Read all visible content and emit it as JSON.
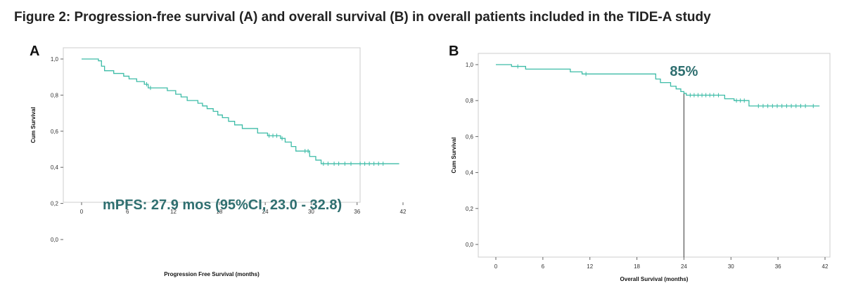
{
  "figure_title": "Figure 2: Progression-free survival (A) and overall survival (B) in overall patients included in the TIDE-A study",
  "colors": {
    "curve": "#3dbca7",
    "annotation": "#2f6f70",
    "axis": "#666666",
    "frame": "#cccccc",
    "refline": "#555555"
  },
  "chart_data": [
    {
      "type": "line",
      "panel_label": "A",
      "xlabel": "Progression Free Survival (months)",
      "ylabel": "Cum Survival",
      "xlim": [
        0,
        42
      ],
      "ylim": [
        0,
        1
      ],
      "xticks": [
        0,
        6,
        12,
        18,
        24,
        30,
        36,
        42
      ],
      "xtick_labels": [
        "0",
        "6",
        "12",
        "18",
        "24",
        "30",
        "36",
        "42"
      ],
      "yticks": [
        0,
        0.2,
        0.4,
        0.6,
        0.8,
        1.0
      ],
      "ytick_labels": [
        "0,0",
        "0,2",
        "0,4",
        "0,6",
        "0,8",
        "1,0"
      ],
      "annotation": "mPFS: 27.9 mos (95%CI, 23.0 - 32.8)",
      "series": [
        {
          "x": [
            0,
            2.2,
            2.6,
            3.0,
            4.2,
            5.5,
            6.2,
            7.2,
            8.2,
            8.7,
            11.2,
            12.3,
            13.0,
            13.8,
            15.2,
            15.8,
            16.4,
            17.2,
            17.8,
            18.4,
            19.2,
            20.0,
            21.0,
            23.0,
            24.3,
            26.0,
            26.6,
            27.4,
            28.0,
            29.8,
            30.6,
            31.3,
            41.5
          ],
          "y": [
            1.0,
            0.99,
            0.96,
            0.935,
            0.92,
            0.905,
            0.89,
            0.875,
            0.86,
            0.84,
            0.825,
            0.805,
            0.79,
            0.77,
            0.755,
            0.74,
            0.725,
            0.71,
            0.69,
            0.675,
            0.655,
            0.635,
            0.615,
            0.59,
            0.575,
            0.56,
            0.54,
            0.515,
            0.49,
            0.46,
            0.44,
            0.42,
            0.42
          ],
          "censored": [
            8.5,
            9.0,
            24.5,
            25.0,
            25.5,
            26.2,
            29.2,
            29.6,
            31.6,
            32.2,
            33.0,
            33.6,
            34.4,
            35.2,
            36.4,
            37.0,
            37.6,
            38.2,
            38.8,
            39.4
          ]
        }
      ]
    },
    {
      "type": "line",
      "panel_label": "B",
      "xlabel": "Overall Survival (months)",
      "ylabel": "Cum Survival",
      "xlim": [
        0,
        42
      ],
      "ylim": [
        0,
        1
      ],
      "xticks": [
        0,
        6,
        12,
        18,
        24,
        30,
        36,
        42
      ],
      "xtick_labels": [
        "0",
        "6",
        "12",
        "18",
        "24",
        "30",
        "36",
        "42"
      ],
      "yticks": [
        0,
        0.2,
        0.4,
        0.6,
        0.8,
        1.0
      ],
      "ytick_labels": [
        "0,0",
        "0,2",
        "0,4",
        "0,6",
        "0,8",
        "1,0"
      ],
      "annotation": "85%",
      "reference_x": 24,
      "series": [
        {
          "x": [
            0,
            2.0,
            3.8,
            9.5,
            11.0,
            18.3,
            20.4,
            21.0,
            22.3,
            23.0,
            23.6,
            24.0,
            24.3,
            29.2,
            30.4,
            32.3,
            41.3
          ],
          "y": [
            1.0,
            0.99,
            0.975,
            0.96,
            0.948,
            0.948,
            0.92,
            0.9,
            0.88,
            0.865,
            0.85,
            0.84,
            0.83,
            0.81,
            0.8,
            0.77,
            0.77
          ],
          "censored": [
            2.8,
            11.5,
            24.8,
            25.3,
            25.8,
            26.3,
            26.8,
            27.3,
            27.8,
            28.4,
            30.7,
            31.2,
            31.7,
            33.5,
            34.1,
            34.7,
            35.3,
            35.9,
            36.5,
            37.1,
            37.7,
            38.3,
            38.9,
            39.5,
            40.5
          ]
        }
      ]
    }
  ]
}
